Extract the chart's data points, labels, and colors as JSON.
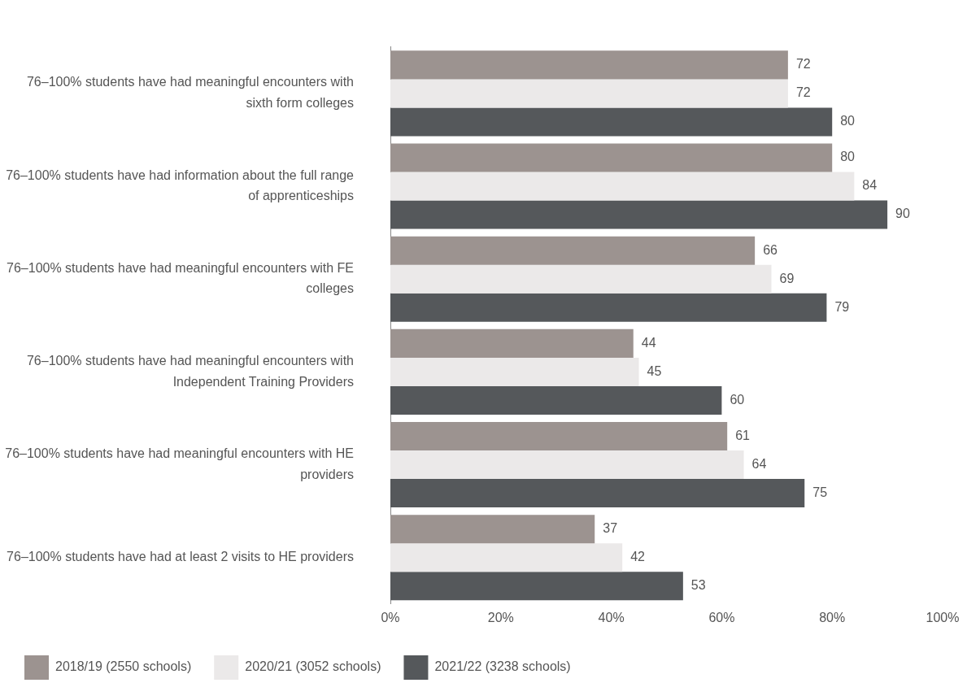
{
  "chart_data": {
    "type": "bar",
    "orientation": "horizontal",
    "categories": [
      "76–100% students have had meaningful encounters with sixth form colleges",
      "76–100% students have had information about the full range of apprenticeships",
      "76–100% students have had meaningful encounters with FE colleges",
      "76–100% students have had meaningful encounters with Independent Training Providers",
      "76–100% students have had meaningful encounters with HE providers",
      "76–100% students have had at least 2 visits to HE providers"
    ],
    "series": [
      {
        "name": "2018/19 (2550 schools)",
        "color": "#9c9390",
        "values": [
          72,
          80,
          66,
          44,
          61,
          37
        ]
      },
      {
        "name": "2020/21 (3052 schools)",
        "color": "#ebe9e9",
        "values": [
          72,
          84,
          69,
          45,
          64,
          42
        ]
      },
      {
        "name": "2021/22 (3238 schools)",
        "color": "#55585b",
        "values": [
          80,
          90,
          79,
          60,
          75,
          53
        ]
      }
    ],
    "xlim": [
      0,
      100
    ],
    "xticks": [
      {
        "value": 0,
        "label": "0%"
      },
      {
        "value": 20,
        "label": "20%"
      },
      {
        "value": 40,
        "label": "40%"
      },
      {
        "value": 60,
        "label": "60%"
      },
      {
        "value": 80,
        "label": "80%"
      },
      {
        "value": 100,
        "label": "100%"
      }
    ],
    "data_labels": true,
    "grid": false,
    "legend": "bottom"
  }
}
